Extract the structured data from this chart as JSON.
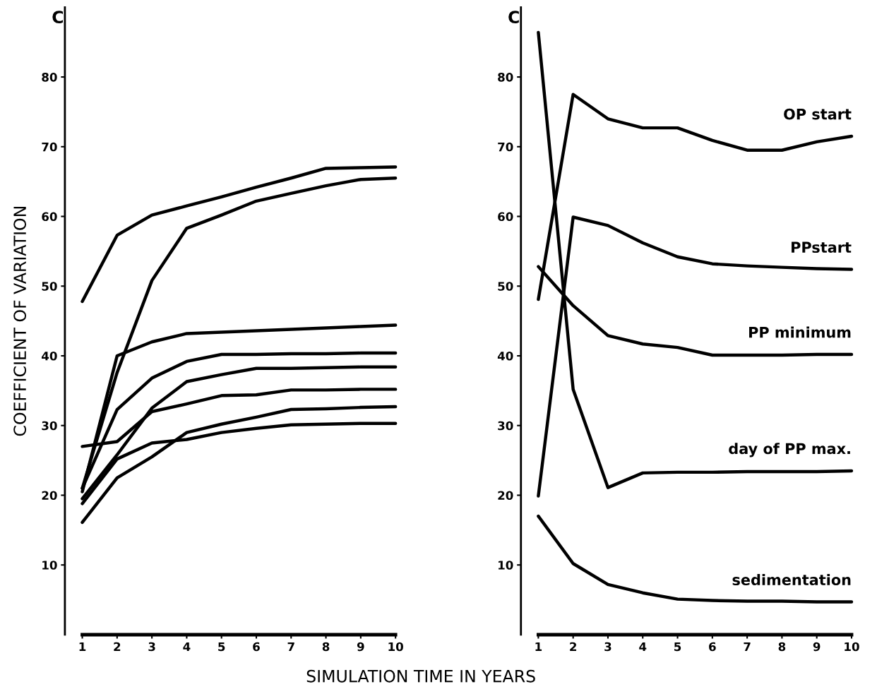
{
  "chart_data": [
    {
      "type": "line",
      "ylabel": "COEFFICIENT OF VARIATION",
      "xlabel": "SIMULATION TIME IN YEARS",
      "annotations": [
        "C"
      ],
      "x": [
        1,
        2,
        3,
        4,
        5,
        6,
        7,
        8,
        9,
        10
      ],
      "xlim": [
        0.5,
        10
      ],
      "ylim": [
        0,
        90
      ],
      "xticks": [
        1,
        2,
        3,
        4,
        5,
        6,
        7,
        8,
        9,
        10
      ],
      "yticks": [
        10,
        20,
        30,
        40,
        50,
        60,
        70,
        80
      ],
      "grid": false,
      "legend": false,
      "marker": "none",
      "line_style": "solid",
      "series": [
        {
          "color": "#000000",
          "values": [
            47.8,
            57.3,
            60.2,
            61.5,
            62.8,
            64.2,
            65.5,
            66.9,
            67.0,
            67.1
          ]
        },
        {
          "color": "#000000",
          "values": [
            21.0,
            37.6,
            50.8,
            58.3,
            60.2,
            62.2,
            63.3,
            64.4,
            65.3,
            65.5
          ]
        },
        {
          "color": "#000000",
          "values": [
            20.5,
            40.0,
            42.0,
            43.2,
            43.4,
            43.6,
            43.8,
            44.0,
            44.2,
            44.4
          ]
        },
        {
          "color": "#000000",
          "values": [
            21.0,
            32.3,
            36.8,
            39.2,
            40.2,
            40.2,
            40.3,
            40.3,
            40.4,
            40.4
          ]
        },
        {
          "color": "#000000",
          "values": [
            19.5,
            25.8,
            32.5,
            36.3,
            37.3,
            38.2,
            38.2,
            38.3,
            38.4,
            38.4
          ]
        },
        {
          "color": "#000000",
          "values": [
            27.0,
            27.7,
            32.0,
            33.1,
            34.3,
            34.4,
            35.1,
            35.1,
            35.2,
            35.2
          ]
        },
        {
          "color": "#000000",
          "values": [
            16.1,
            22.5,
            25.5,
            29.0,
            30.2,
            31.2,
            32.3,
            32.4,
            32.6,
            32.7
          ]
        },
        {
          "color": "#000000",
          "values": [
            18.8,
            25.2,
            27.5,
            28.0,
            29.0,
            29.6,
            30.1,
            30.2,
            30.3,
            30.3
          ]
        }
      ]
    },
    {
      "type": "line",
      "annotations": [
        "C"
      ],
      "x": [
        1,
        2,
        3,
        4,
        5,
        6,
        7,
        8,
        9,
        10
      ],
      "xlim": [
        0.5,
        10
      ],
      "ylim": [
        0,
        90
      ],
      "xticks": [
        1,
        2,
        3,
        4,
        5,
        6,
        7,
        8,
        9,
        10
      ],
      "yticks": [
        10,
        20,
        30,
        40,
        50,
        60,
        70,
        80
      ],
      "grid": false,
      "legend": false,
      "marker": "none",
      "line_style": "solid",
      "series": [
        {
          "name": "OP start",
          "color": "#000000",
          "values": [
            48.1,
            77.5,
            74.0,
            72.7,
            72.7,
            70.9,
            69.5,
            69.5,
            70.7,
            71.5
          ]
        },
        {
          "name": "PPstart",
          "color": "#000000",
          "values": [
            19.9,
            59.9,
            58.7,
            56.2,
            54.2,
            53.2,
            52.9,
            52.7,
            52.5,
            52.4
          ]
        },
        {
          "name": "PP minimum",
          "color": "#000000",
          "values": [
            52.8,
            47.2,
            42.9,
            41.7,
            41.2,
            40.1,
            40.1,
            40.1,
            40.2,
            40.2
          ]
        },
        {
          "name": "day of PP max.",
          "color": "#000000",
          "values": [
            86.4,
            35.2,
            21.1,
            23.2,
            23.3,
            23.3,
            23.4,
            23.4,
            23.4,
            23.5
          ]
        },
        {
          "name": "sedimentation",
          "color": "#000000",
          "values": [
            17.0,
            10.2,
            7.2,
            6.0,
            5.1,
            4.9,
            4.8,
            4.8,
            4.7,
            4.7
          ]
        }
      ]
    }
  ]
}
